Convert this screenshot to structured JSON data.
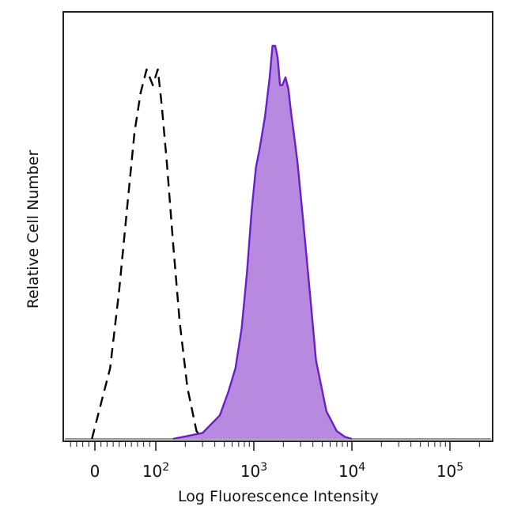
{
  "chart_data": {
    "type": "area",
    "xlabel": "Log Fluorescence Intensity",
    "ylabel": "Relative Cell Number",
    "x_scale": "biexponential (log)",
    "xlim": [
      -100,
      200000
    ],
    "ylim": [
      0,
      1.0
    ],
    "grid": false,
    "legend": "none",
    "x_ticks": [
      {
        "value": 0,
        "base": "0",
        "exp": ""
      },
      {
        "value": 100,
        "base": "10",
        "exp": "2"
      },
      {
        "value": 1000,
        "base": "10",
        "exp": "3"
      },
      {
        "value": 10000,
        "base": "10",
        "exp": "4"
      },
      {
        "value": 100000,
        "base": "10",
        "exp": "5"
      }
    ],
    "series": [
      {
        "style": "dashed",
        "color": "#000000",
        "fill": "none",
        "x": [
          -5,
          25,
          40,
          55,
          65,
          75,
          85,
          95,
          105,
          115,
          130,
          150,
          175,
          210,
          260,
          300
        ],
        "y": [
          0,
          0.18,
          0.38,
          0.62,
          0.78,
          0.88,
          0.94,
          0.9,
          0.94,
          0.85,
          0.7,
          0.5,
          0.3,
          0.13,
          0.02,
          0
        ]
      },
      {
        "style": "solid",
        "color": "#6a1fc7",
        "fill": "#b78ae0",
        "x": [
          150,
          300,
          450,
          550,
          650,
          750,
          850,
          950,
          1050,
          1150,
          1300,
          1450,
          1550,
          1650,
          1750,
          1850,
          1950,
          2100,
          2250,
          2400,
          2550,
          2800,
          3200,
          3700,
          4300,
          5500,
          7000,
          8500,
          10000
        ],
        "y": [
          0.0,
          0.015,
          0.06,
          0.12,
          0.18,
          0.28,
          0.42,
          0.58,
          0.69,
          0.74,
          0.82,
          0.92,
          1.0,
          1.0,
          0.97,
          0.9,
          0.9,
          0.92,
          0.89,
          0.83,
          0.78,
          0.7,
          0.55,
          0.38,
          0.2,
          0.07,
          0.02,
          0.005,
          0
        ]
      }
    ]
  }
}
